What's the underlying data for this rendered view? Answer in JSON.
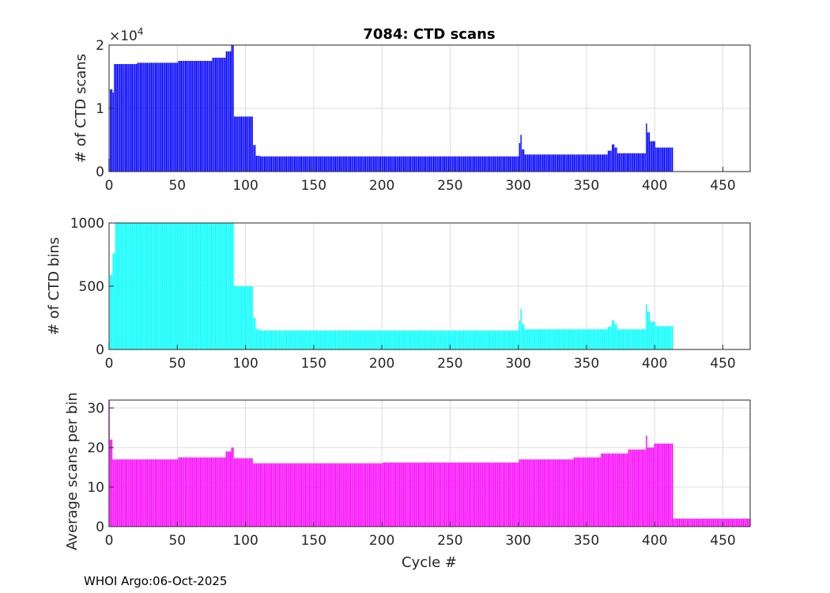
{
  "footer": "WHOI Argo:06-Oct-2025",
  "chart_data": [
    {
      "type": "bar",
      "title": "7084: CTD scans",
      "xlabel": "",
      "ylabel": "# of CTD scans",
      "exponent_base": "×10",
      "exponent_power": "4",
      "xlim": [
        0,
        470
      ],
      "ylim": [
        0,
        2
      ],
      "xticks": [
        "0",
        "50",
        "100",
        "150",
        "200",
        "250",
        "300",
        "350",
        "400",
        "450"
      ],
      "yticks": [
        "0",
        "1",
        "2"
      ],
      "color": "#0000ff",
      "segments": [
        {
          "from": 0,
          "to": 0,
          "value": 0.2
        },
        {
          "from": 1,
          "to": 2,
          "value": 1.3
        },
        {
          "from": 3,
          "to": 3,
          "value": 1.25
        },
        {
          "from": 4,
          "to": 20,
          "value": 1.7
        },
        {
          "from": 21,
          "to": 50,
          "value": 1.72
        },
        {
          "from": 51,
          "to": 75,
          "value": 1.75
        },
        {
          "from": 76,
          "to": 85,
          "value": 1.8
        },
        {
          "from": 86,
          "to": 89,
          "value": 1.9
        },
        {
          "from": 90,
          "to": 91,
          "value": 2.02
        },
        {
          "from": 92,
          "to": 105,
          "value": 0.87
        },
        {
          "from": 106,
          "to": 107,
          "value": 0.42
        },
        {
          "from": 108,
          "to": 110,
          "value": 0.25
        },
        {
          "from": 111,
          "to": 300,
          "value": 0.24
        },
        {
          "from": 301,
          "to": 301,
          "value": 0.45
        },
        {
          "from": 302,
          "to": 302,
          "value": 0.58
        },
        {
          "from": 303,
          "to": 304,
          "value": 0.35
        },
        {
          "from": 305,
          "to": 365,
          "value": 0.27
        },
        {
          "from": 366,
          "to": 368,
          "value": 0.33
        },
        {
          "from": 369,
          "to": 370,
          "value": 0.43
        },
        {
          "from": 371,
          "to": 372,
          "value": 0.38
        },
        {
          "from": 373,
          "to": 393,
          "value": 0.29
        },
        {
          "from": 394,
          "to": 394,
          "value": 0.76
        },
        {
          "from": 395,
          "to": 396,
          "value": 0.62
        },
        {
          "from": 397,
          "to": 400,
          "value": 0.48
        },
        {
          "from": 401,
          "to": 413,
          "value": 0.38
        }
      ]
    },
    {
      "type": "bar",
      "title": "",
      "xlabel": "",
      "ylabel": "# of CTD bins",
      "xlim": [
        0,
        470
      ],
      "ylim": [
        0,
        1000
      ],
      "xticks": [
        "0",
        "50",
        "100",
        "150",
        "200",
        "250",
        "300",
        "350",
        "400",
        "450"
      ],
      "yticks": [
        "0",
        "500",
        "1000"
      ],
      "color": "#00ffff",
      "segments": [
        {
          "from": 0,
          "to": 0,
          "value": 60
        },
        {
          "from": 1,
          "to": 2,
          "value": 590
        },
        {
          "from": 3,
          "to": 4,
          "value": 760
        },
        {
          "from": 5,
          "to": 91,
          "value": 1000
        },
        {
          "from": 92,
          "to": 105,
          "value": 500
        },
        {
          "from": 106,
          "to": 107,
          "value": 250
        },
        {
          "from": 108,
          "to": 110,
          "value": 160
        },
        {
          "from": 111,
          "to": 300,
          "value": 150
        },
        {
          "from": 301,
          "to": 301,
          "value": 230
        },
        {
          "from": 302,
          "to": 302,
          "value": 320
        },
        {
          "from": 303,
          "to": 304,
          "value": 200
        },
        {
          "from": 305,
          "to": 365,
          "value": 160
        },
        {
          "from": 366,
          "to": 368,
          "value": 180
        },
        {
          "from": 369,
          "to": 370,
          "value": 230
        },
        {
          "from": 371,
          "to": 372,
          "value": 200
        },
        {
          "from": 373,
          "to": 393,
          "value": 160
        },
        {
          "from": 394,
          "to": 394,
          "value": 360
        },
        {
          "from": 395,
          "to": 396,
          "value": 300
        },
        {
          "from": 397,
          "to": 400,
          "value": 220
        },
        {
          "from": 401,
          "to": 413,
          "value": 185
        }
      ]
    },
    {
      "type": "bar",
      "title": "",
      "xlabel": "Cycle #",
      "ylabel": "Average scans per bin",
      "xlim": [
        0,
        470
      ],
      "ylim": [
        0,
        32
      ],
      "xticks": [
        "0",
        "50",
        "100",
        "150",
        "200",
        "250",
        "300",
        "350",
        "400",
        "450"
      ],
      "yticks": [
        "0",
        "10",
        "20",
        "30"
      ],
      "color": "#ff00ff",
      "segments": [
        {
          "from": 0,
          "to": 0,
          "value": 32
        },
        {
          "from": 1,
          "to": 2,
          "value": 22
        },
        {
          "from": 3,
          "to": 50,
          "value": 17
        },
        {
          "from": 51,
          "to": 85,
          "value": 17.5
        },
        {
          "from": 86,
          "to": 89,
          "value": 19
        },
        {
          "from": 90,
          "to": 91,
          "value": 20
        },
        {
          "from": 92,
          "to": 105,
          "value": 17.3
        },
        {
          "from": 106,
          "to": 200,
          "value": 16
        },
        {
          "from": 201,
          "to": 300,
          "value": 16.2
        },
        {
          "from": 301,
          "to": 340,
          "value": 17
        },
        {
          "from": 341,
          "to": 360,
          "value": 17.5
        },
        {
          "from": 361,
          "to": 380,
          "value": 18.5
        },
        {
          "from": 381,
          "to": 393,
          "value": 19.5
        },
        {
          "from": 394,
          "to": 394,
          "value": 23
        },
        {
          "from": 395,
          "to": 399,
          "value": 20
        },
        {
          "from": 400,
          "to": 413,
          "value": 21
        },
        {
          "from": 414,
          "to": 470,
          "value": 2
        }
      ]
    }
  ]
}
